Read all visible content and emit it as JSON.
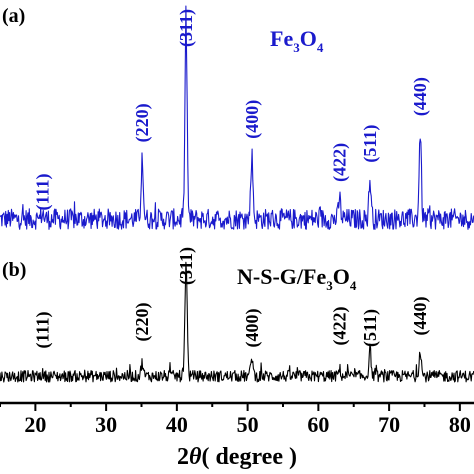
{
  "chart_data": {
    "type": "line",
    "xlabel_prefix": "2",
    "xlabel_theta": "θ",
    "xlabel_suffix": "( degree )",
    "xlim": [
      15,
      82
    ],
    "xticks": [
      20,
      30,
      40,
      50,
      60,
      70,
      80
    ],
    "tick_labels": [
      "20",
      "30",
      "40",
      "50",
      "60",
      "70",
      "80"
    ],
    "panels": [
      {
        "panel_label": "(a)",
        "sample": {
          "base": "Fe",
          "s1": "3",
          "mid": "O",
          "s2": "4",
          "rest": ""
        },
        "color": "#1a1acc",
        "baseline": 0.9,
        "noise": 0.55,
        "peaks": [
          {
            "hkl": "(111)",
            "two_theta": 21.0,
            "intensity": 0.35
          },
          {
            "hkl": "(220)",
            "two_theta": 35.1,
            "intensity": 3.2
          },
          {
            "hkl": "(311)",
            "two_theta": 41.3,
            "intensity": 10.0
          },
          {
            "hkl": "(400)",
            "two_theta": 50.6,
            "intensity": 3.4
          },
          {
            "hkl": "(422)",
            "two_theta": 63.0,
            "intensity": 1.1
          },
          {
            "hkl": "(511)",
            "two_theta": 67.3,
            "intensity": 2.1
          },
          {
            "hkl": "(440)",
            "two_theta": 74.4,
            "intensity": 4.6
          }
        ]
      },
      {
        "panel_label": "(b)",
        "sample": {
          "base": "N-S-G/Fe",
          "s1": "3",
          "mid": "O",
          "s2": "4",
          "rest": ""
        },
        "color": "#000000",
        "baseline": 0.5,
        "noise": 0.5,
        "peaks": [
          {
            "hkl": "(111)",
            "two_theta": 21.0,
            "intensity": 0.2
          },
          {
            "hkl": "(220)",
            "two_theta": 35.1,
            "intensity": 1.2
          },
          {
            "hkl": "(311)",
            "two_theta": 41.3,
            "intensity": 10.0
          },
          {
            "hkl": "(400)",
            "two_theta": 50.6,
            "intensity": 1.7
          },
          {
            "hkl": "(422)",
            "two_theta": 63.0,
            "intensity": 0.6
          },
          {
            "hkl": "(511)",
            "two_theta": 67.3,
            "intensity": 2.3
          },
          {
            "hkl": "(440)",
            "two_theta": 74.4,
            "intensity": 2.3
          }
        ]
      }
    ]
  }
}
